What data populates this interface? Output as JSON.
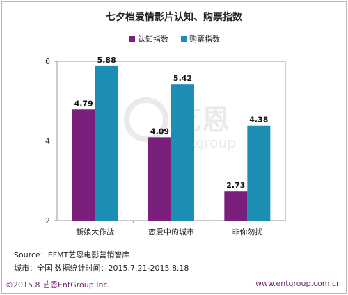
{
  "chart_data": {
    "type": "bar",
    "title": "七夕档爱情影片认知、购票指数",
    "categories": [
      "新娘大作战",
      "恋爱中的城市",
      "非你勿扰"
    ],
    "series": [
      {
        "name": "认知指数",
        "values": [
          4.79,
          4.09,
          2.73
        ],
        "color": "#7b1f7c"
      },
      {
        "name": "购票指数",
        "values": [
          5.88,
          5.42,
          4.38
        ],
        "color": "#1c8db3"
      }
    ],
    "ylim": [
      2,
      6
    ],
    "yticks": [
      "2",
      "4",
      "6"
    ],
    "legend_position": "top",
    "grid": false
  },
  "watermark": {
    "text": "艺恩",
    "sub": "entgroup"
  },
  "source": {
    "line1": "Source：EFMT艺恩电影营销智库",
    "line2": "城市：全国   数据统计时间：2015.7.21-2015.8.18"
  },
  "footer": {
    "left": "©2015.8 艺恩EntGroup Inc.",
    "right": "www.entgroup.com.cn",
    "accent": "#8a2c82"
  }
}
